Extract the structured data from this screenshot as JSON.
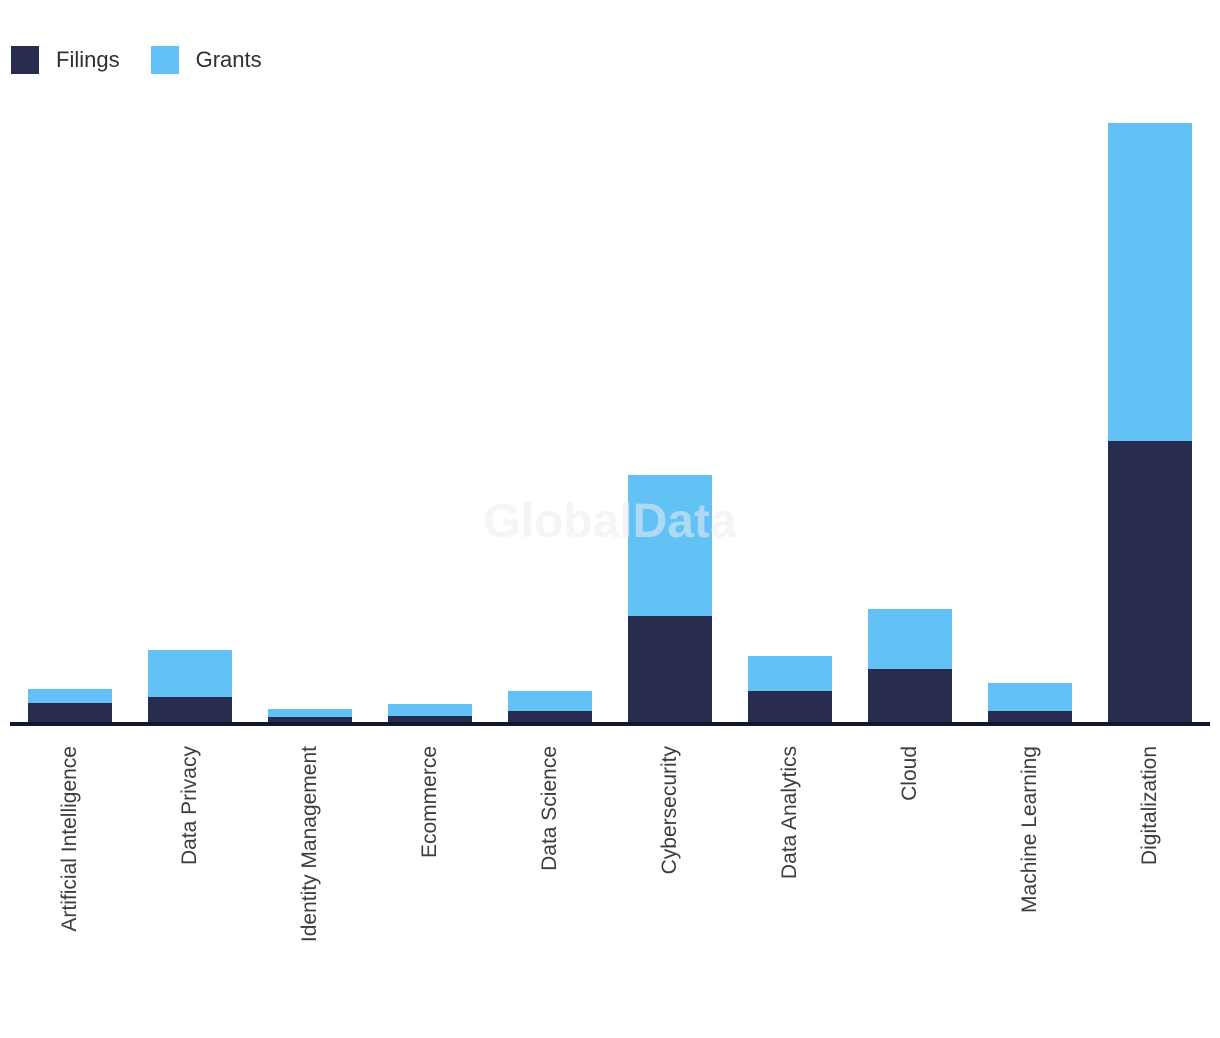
{
  "legend": {
    "items": [
      {
        "label": "Filings",
        "color": "#282C4F"
      },
      {
        "label": "Grants",
        "color": "#62C1F5"
      }
    ]
  },
  "watermark": {
    "text": "GlobalData"
  },
  "chart_data": {
    "type": "bar",
    "stacked": true,
    "title": "",
    "xlabel": "",
    "ylabel": "",
    "grid": false,
    "legend_position": "top-left",
    "y_axis_visible": false,
    "x_label_rotation_deg": -90,
    "note": "No y-axis scale or gridlines shown in source; values are measured segment heights in screen pixels (1 px = 1 relative unit).",
    "ylim": [
      0,
      620
    ],
    "categories": [
      "Artificial Intelligence",
      "Data Privacy",
      "Identity Management",
      "Ecommerce",
      "Data Science",
      "Cybersecurity",
      "Data Analytics",
      "Cloud",
      "Machine Learning",
      "Digitalization"
    ],
    "series": [
      {
        "name": "Filings",
        "color": "#282C4F",
        "values": [
          19,
          25,
          5,
          6,
          11,
          106,
          31,
          53,
          11,
          281
        ]
      },
      {
        "name": "Grants",
        "color": "#62C1F5",
        "values": [
          14,
          47,
          8,
          12,
          20,
          141,
          35,
          60,
          28,
          318
        ]
      }
    ],
    "axis_color": "#141730"
  }
}
